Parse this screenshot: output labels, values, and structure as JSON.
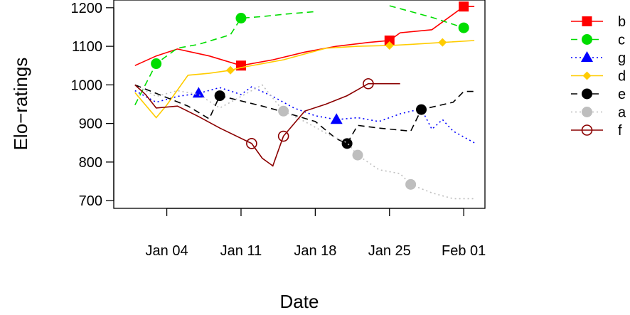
{
  "chart_data": {
    "type": "line",
    "title": "",
    "xlabel": "Date",
    "ylabel": "Elo−ratings",
    "xlim": [
      "2020-12-30",
      "2021-02-03"
    ],
    "ylim": [
      680,
      1220
    ],
    "x_ticks": [
      {
        "date": "2021-01-04",
        "label": "Jan 04"
      },
      {
        "date": "2021-01-11",
        "label": "Jan 11"
      },
      {
        "date": "2021-01-18",
        "label": "Jan 18"
      },
      {
        "date": "2021-01-25",
        "label": "Jan 25"
      },
      {
        "date": "2021-02-01",
        "label": "Feb 01"
      }
    ],
    "y_ticks": [
      700,
      800,
      900,
      1000,
      1100,
      1200
    ],
    "grid": false,
    "legend_position": "right",
    "series": [
      {
        "name": "b",
        "color": "#ff0000",
        "dash": "solid",
        "marker": "square-filled",
        "points": [
          [
            "2021-01-01",
            1050
          ],
          [
            "2021-01-03",
            1075
          ],
          [
            "2021-01-05",
            1093
          ],
          [
            "2021-01-08",
            1075
          ],
          [
            "2021-01-11",
            1050
          ],
          [
            "2021-01-14",
            1065
          ],
          [
            "2021-01-17",
            1085
          ],
          [
            "2021-01-20",
            1100
          ],
          [
            "2021-01-23",
            1110
          ],
          [
            "2021-01-25",
            1115
          ],
          [
            "2021-01-26",
            1135
          ],
          [
            "2021-01-29",
            1143
          ],
          [
            "2021-02-01",
            1203
          ],
          [
            "2021-02-02",
            1203
          ]
        ],
        "markers": [
          [
            "2021-01-11",
            1050
          ],
          [
            "2021-01-25",
            1115
          ],
          [
            "2021-02-01",
            1203
          ]
        ]
      },
      {
        "name": "c",
        "color": "#00dd00",
        "dash": "dashed",
        "marker": "circle-filled",
        "segments": [
          [
            [
              "2021-01-01",
              948
            ],
            [
              "2021-01-03",
              1055
            ],
            [
              "2021-01-05",
              1095
            ],
            [
              "2021-01-07",
              1105
            ],
            [
              "2021-01-10",
              1130
            ],
            [
              "2021-01-11",
              1173
            ],
            [
              "2021-01-13",
              1177
            ],
            [
              "2021-01-15",
              1183
            ],
            [
              "2021-01-18",
              1190
            ]
          ],
          [
            [
              "2021-01-25",
              1205
            ],
            [
              "2021-01-29",
              1175
            ],
            [
              "2021-02-01",
              1148
            ]
          ]
        ],
        "markers": [
          [
            "2021-01-03",
            1055
          ],
          [
            "2021-01-11",
            1173
          ],
          [
            "2021-02-01",
            1148
          ]
        ]
      },
      {
        "name": "g",
        "color": "#0000ff",
        "dash": "dotted",
        "marker": "triangle-filled",
        "points": [
          [
            "2021-01-01",
            985
          ],
          [
            "2021-01-03",
            955
          ],
          [
            "2021-01-05",
            970
          ],
          [
            "2021-01-07",
            978
          ],
          [
            "2021-01-09",
            993
          ],
          [
            "2021-01-11",
            975
          ],
          [
            "2021-01-12",
            995
          ],
          [
            "2021-01-14",
            970
          ],
          [
            "2021-01-16",
            940
          ],
          [
            "2021-01-18",
            920
          ],
          [
            "2021-01-20",
            910
          ],
          [
            "2021-01-22",
            915
          ],
          [
            "2021-01-24",
            905
          ],
          [
            "2021-01-26",
            925
          ],
          [
            "2021-01-28",
            938
          ],
          [
            "2021-01-29",
            885
          ],
          [
            "2021-01-30",
            910
          ],
          [
            "2021-01-31",
            880
          ],
          [
            "2021-02-02",
            850
          ]
        ],
        "markers": [
          [
            "2021-01-07",
            978
          ],
          [
            "2021-01-20",
            910
          ]
        ]
      },
      {
        "name": "d",
        "color": "#ffcc00",
        "dash": "solid",
        "marker": "diamond-filled",
        "points": [
          [
            "2021-01-01",
            980
          ],
          [
            "2021-01-03",
            915
          ],
          [
            "2021-01-04",
            948
          ],
          [
            "2021-01-06",
            1025
          ],
          [
            "2021-01-08",
            1030
          ],
          [
            "2021-01-10",
            1038
          ],
          [
            "2021-01-11",
            1045
          ],
          [
            "2021-01-15",
            1065
          ],
          [
            "2021-01-19",
            1095
          ],
          [
            "2021-01-22",
            1100
          ],
          [
            "2021-01-25",
            1102
          ],
          [
            "2021-01-27",
            1105
          ],
          [
            "2021-01-30",
            1110
          ],
          [
            "2021-02-02",
            1115
          ]
        ],
        "markers": [
          [
            "2021-01-10",
            1038
          ],
          [
            "2021-01-25",
            1102
          ],
          [
            "2021-01-30",
            1110
          ]
        ]
      },
      {
        "name": "e",
        "color": "#000000",
        "dash": "dashed",
        "marker": "circle-filled",
        "points": [
          [
            "2021-01-01",
            1000
          ],
          [
            "2021-01-06",
            945
          ],
          [
            "2021-01-08",
            912
          ],
          [
            "2021-01-09",
            972
          ],
          [
            "2021-01-13",
            945
          ],
          [
            "2021-01-15",
            930
          ],
          [
            "2021-01-18",
            905
          ],
          [
            "2021-01-20",
            860
          ],
          [
            "2021-01-21",
            848
          ],
          [
            "2021-01-22",
            895
          ],
          [
            "2021-01-24",
            888
          ],
          [
            "2021-01-27",
            880
          ],
          [
            "2021-01-28",
            936
          ],
          [
            "2021-01-31",
            955
          ],
          [
            "2021-02-01",
            983
          ],
          [
            "2021-02-02",
            983
          ]
        ],
        "markers": [
          [
            "2021-01-09",
            972
          ],
          [
            "2021-01-21",
            848
          ],
          [
            "2021-01-28",
            936
          ]
        ]
      },
      {
        "name": "a",
        "color": "#bebebe",
        "dash": "dotted",
        "marker": "circle-filled",
        "points": [
          [
            "2021-01-01",
            1000
          ],
          [
            "2021-01-03",
            970
          ],
          [
            "2021-01-05",
            985
          ],
          [
            "2021-01-07",
            975
          ],
          [
            "2021-01-09",
            940
          ],
          [
            "2021-01-11",
            970
          ],
          [
            "2021-01-13",
            1000
          ],
          [
            "2021-01-15",
            932
          ],
          [
            "2021-01-17",
            905
          ],
          [
            "2021-01-19",
            875
          ],
          [
            "2021-01-21",
            850
          ],
          [
            "2021-01-22",
            818
          ],
          [
            "2021-01-24",
            780
          ],
          [
            "2021-01-26",
            770
          ],
          [
            "2021-01-27",
            742
          ],
          [
            "2021-01-29",
            720
          ],
          [
            "2021-01-31",
            705
          ],
          [
            "2021-02-02",
            705
          ]
        ],
        "markers": [
          [
            "2021-01-15",
            932
          ],
          [
            "2021-01-22",
            818
          ],
          [
            "2021-01-27",
            742
          ]
        ]
      },
      {
        "name": "f",
        "color": "#8b0000",
        "dash": "solid",
        "marker": "circle-open",
        "points": [
          [
            "2021-01-01",
            1000
          ],
          [
            "2021-01-02",
            975
          ],
          [
            "2021-01-03",
            940
          ],
          [
            "2021-01-05",
            945
          ],
          [
            "2021-01-07",
            918
          ],
          [
            "2021-01-09",
            888
          ],
          [
            "2021-01-12",
            848
          ],
          [
            "2021-01-13",
            810
          ],
          [
            "2021-01-14",
            790
          ],
          [
            "2021-01-15",
            867
          ],
          [
            "2021-01-17",
            932
          ],
          [
            "2021-01-19",
            950
          ],
          [
            "2021-01-21",
            972
          ],
          [
            "2021-01-23",
            1003
          ],
          [
            "2021-01-24",
            1003
          ],
          [
            "2021-01-26",
            1003
          ]
        ],
        "markers": [
          [
            "2021-01-12",
            848
          ],
          [
            "2021-01-15",
            867
          ],
          [
            "2021-01-23",
            1003
          ]
        ]
      }
    ]
  }
}
